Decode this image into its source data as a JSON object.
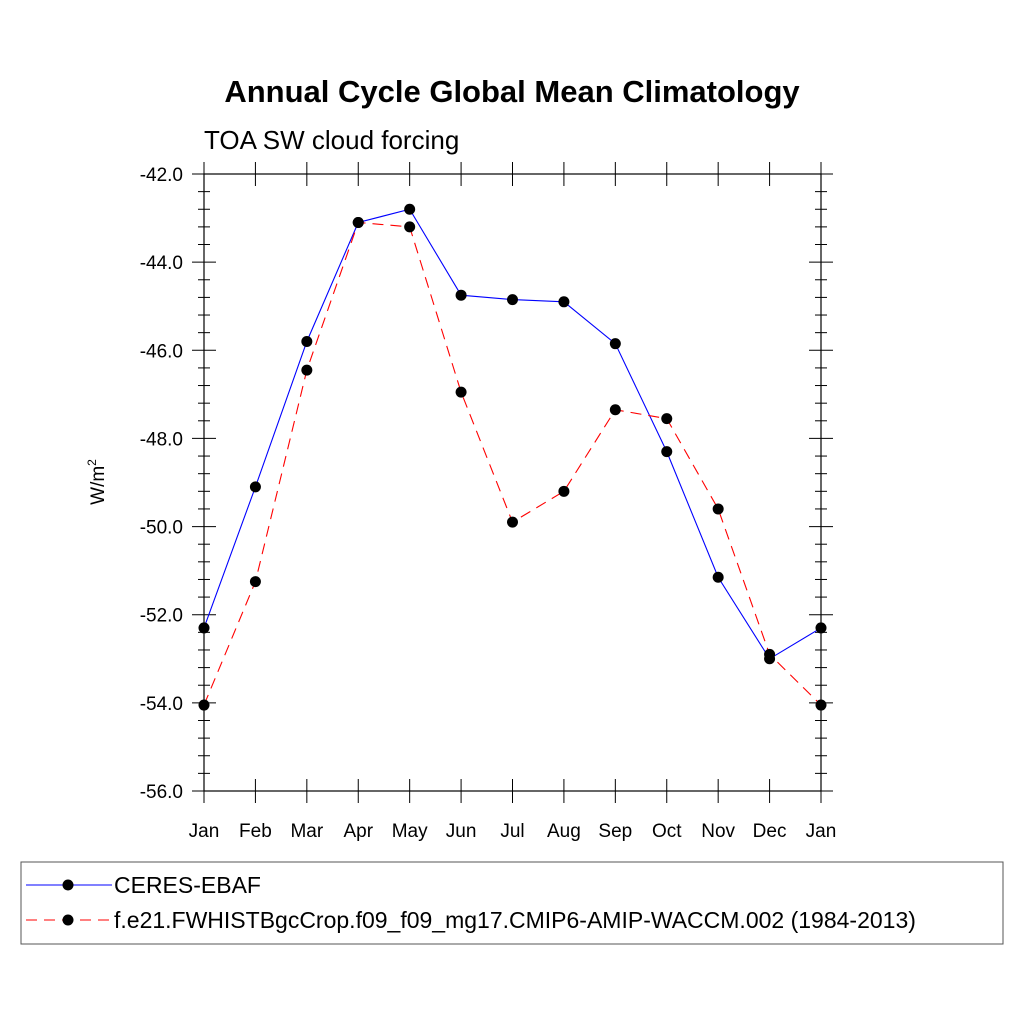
{
  "chart_data": {
    "type": "line",
    "title": "Annual Cycle Global Mean Climatology",
    "subtitle": "TOA SW cloud forcing",
    "ylabel": "W/m",
    "ylabel_superscript": "2",
    "xlabel": "",
    "categories": [
      "Jan",
      "Feb",
      "Mar",
      "Apr",
      "May",
      "Jun",
      "Jul",
      "Aug",
      "Sep",
      "Oct",
      "Nov",
      "Dec",
      "Jan"
    ],
    "ylim": [
      -56.0,
      -42.0
    ],
    "yticks": [
      "-56.0",
      "-54.0",
      "-52.0",
      "-50.0",
      "-48.0",
      "-46.0",
      "-44.0",
      "-42.0"
    ],
    "grid": false,
    "legend_placement": "bottom",
    "series": [
      {
        "name": "CERES-EBAF",
        "color": "#0000ff",
        "dash": "solid",
        "values": [
          -52.3,
          -49.1,
          -45.8,
          -43.1,
          -42.8,
          -44.75,
          -44.85,
          -44.9,
          -45.85,
          -48.3,
          -51.15,
          -53.0,
          -52.3
        ]
      },
      {
        "name": "f.e21.FWHISTBgcCrop.f09_f09_mg17.CMIP6-AMIP-WACCM.002 (1984-2013)",
        "color": "#ff0000",
        "dash": "dashed",
        "values": [
          -54.05,
          -51.25,
          -46.45,
          -43.1,
          -43.2,
          -46.95,
          -49.9,
          -49.2,
          -47.35,
          -47.55,
          -49.6,
          -52.9,
          -54.05
        ]
      }
    ]
  }
}
